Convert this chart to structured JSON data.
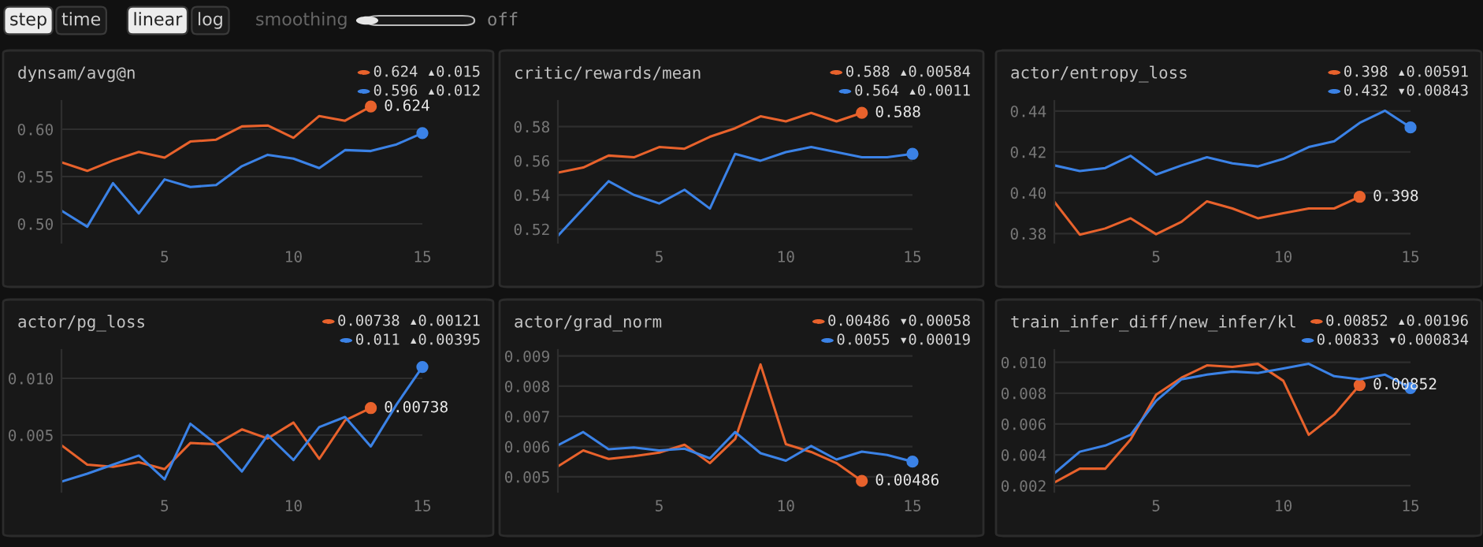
{
  "chart_data": [
    {
      "type": "other",
      "annotations": [
        "step",
        "time",
        "linear",
        "log",
        "smoothing",
        "off"
      ]
    },
    {
      "type": "line",
      "title": "dynsam/avg@n",
      "xlim": [
        1,
        15
      ],
      "xticks": [
        5,
        10,
        15
      ],
      "ylim": [
        0.48,
        0.63
      ],
      "yticks": [
        {
          "value": 0.5,
          "label": "0.50"
        },
        0.55,
        {
          "value": 0.6,
          "label": "0.60"
        }
      ],
      "grid": "y",
      "annotations": [
        "0.624 ▴0.015",
        "0.596 ▴0.012"
      ],
      "series": [
        {
          "color": "#e8622c",
          "x": [
            1,
            2,
            3,
            4,
            5,
            6,
            7,
            8,
            9,
            10,
            11,
            12,
            13
          ],
          "values": [
            0.565,
            0.556,
            0.567,
            0.576,
            0.57,
            0.587,
            0.589,
            0.603,
            0.604,
            0.591,
            0.614,
            0.609,
            0.624
          ],
          "value_labels": [
            null,
            null,
            null,
            null,
            null,
            null,
            null,
            null,
            null,
            null,
            null,
            null,
            "0.624"
          ]
        },
        {
          "color": "#3b82e6",
          "x": [
            1,
            2,
            3,
            4,
            5,
            6,
            7,
            8,
            9,
            10,
            11,
            12,
            13,
            14,
            15
          ],
          "values": [
            0.514,
            0.497,
            0.543,
            0.511,
            0.547,
            0.539,
            0.541,
            0.561,
            0.573,
            0.569,
            0.559,
            0.578,
            0.577,
            0.584,
            0.596
          ]
        }
      ]
    },
    {
      "type": "line",
      "title": "critic/rewards/mean",
      "xlim": [
        1,
        15
      ],
      "xticks": [
        5,
        10,
        15
      ],
      "ylim": [
        0.512,
        0.595
      ],
      "yticks": [
        0.52,
        0.54,
        0.56,
        0.58
      ],
      "grid": "y",
      "annotations": [
        "0.588 ▴0.00584",
        "0.564 ▴0.0011"
      ],
      "series": [
        {
          "color": "#e8622c",
          "x": [
            1,
            2,
            3,
            4,
            5,
            6,
            7,
            8,
            9,
            10,
            11,
            12,
            13
          ],
          "values": [
            0.553,
            0.556,
            0.563,
            0.562,
            0.568,
            0.567,
            0.574,
            0.579,
            0.586,
            0.583,
            0.588,
            0.583,
            0.588
          ],
          "value_labels": [
            null,
            null,
            null,
            null,
            null,
            null,
            null,
            null,
            null,
            null,
            null,
            null,
            "0.588"
          ]
        },
        {
          "color": "#3b82e6",
          "x": [
            1,
            2,
            3,
            4,
            5,
            6,
            7,
            8,
            9,
            10,
            11,
            12,
            13,
            14,
            15
          ],
          "values": [
            0.516,
            0.532,
            0.548,
            0.54,
            0.535,
            0.543,
            0.532,
            0.564,
            0.56,
            0.565,
            0.568,
            0.565,
            0.562,
            0.562,
            0.564
          ]
        }
      ]
    },
    {
      "type": "line",
      "title": "actor/entropy_loss",
      "xlim": [
        1,
        15
      ],
      "xticks": [
        5,
        10,
        15
      ],
      "ylim": [
        0.3755,
        0.445
      ],
      "yticks": [
        {
          "value": 0.38,
          "label": "0.38"
        },
        {
          "value": 0.4,
          "label": "0.40"
        },
        0.42,
        0.44
      ],
      "grid": "y",
      "annotations": [
        "0.398 ▴0.00591",
        "0.432 ▾0.00843"
      ],
      "series": [
        {
          "color": "#e8622c",
          "x": [
            1,
            2,
            3,
            4,
            5,
            6,
            7,
            8,
            9,
            10,
            11,
            12,
            13
          ],
          "values": [
            0.3956,
            0.3795,
            0.3825,
            0.3875,
            0.3797,
            0.3858,
            0.3958,
            0.3923,
            0.3875,
            0.39,
            0.3923,
            0.3923,
            0.398
          ],
          "value_labels": [
            null,
            null,
            null,
            null,
            null,
            null,
            null,
            null,
            null,
            null,
            null,
            null,
            "0.398"
          ]
        },
        {
          "color": "#3b82e6",
          "x": [
            1,
            2,
            3,
            4,
            5,
            6,
            7,
            8,
            9,
            10,
            11,
            12,
            13,
            14,
            15
          ],
          "values": [
            0.4134,
            0.4106,
            0.4121,
            0.4181,
            0.4089,
            0.4134,
            0.4174,
            0.4144,
            0.4129,
            0.4166,
            0.4224,
            0.4252,
            0.4342,
            0.4402,
            0.432
          ]
        }
      ]
    },
    {
      "type": "line",
      "title": "actor/pg_loss",
      "xlim": [
        1,
        15
      ],
      "xticks": [
        5,
        10,
        15
      ],
      "ylim": [
        0,
        0.0125
      ],
      "yticks": [
        0.005,
        {
          "value": 0.01,
          "label": "0.010"
        }
      ],
      "grid": "y",
      "annotations": [
        "0.00738 ▴0.00121",
        "0.011 ▴0.00395"
      ],
      "series": [
        {
          "color": "#e8622c",
          "x": [
            1,
            2,
            3,
            4,
            5,
            6,
            7,
            8,
            9,
            10,
            11,
            12,
            13
          ],
          "values": [
            0.0041,
            0.0024,
            0.0022,
            0.0026,
            0.002,
            0.0043,
            0.0042,
            0.0055,
            0.0047,
            0.0061,
            0.0029,
            0.0063,
            0.00738
          ],
          "value_labels": [
            null,
            null,
            null,
            null,
            null,
            null,
            null,
            null,
            null,
            null,
            null,
            null,
            "0.00738"
          ]
        },
        {
          "color": "#3b82e6",
          "x": [
            1,
            2,
            3,
            4,
            5,
            6,
            7,
            8,
            9,
            10,
            11,
            12,
            13,
            14,
            15
          ],
          "values": [
            0.0009,
            0.0016,
            0.0024,
            0.0032,
            0.0011,
            0.006,
            0.0042,
            0.0018,
            0.005,
            0.0028,
            0.0057,
            0.0066,
            0.004,
            0.0077,
            0.011
          ]
        }
      ]
    },
    {
      "type": "line",
      "title": "actor/grad_norm",
      "xlim": [
        1,
        15
      ],
      "xticks": [
        5,
        10,
        15
      ],
      "ylim": [
        0.0045,
        0.0092
      ],
      "yticks": [
        0.005,
        0.006,
        0.007,
        0.008,
        0.009
      ],
      "grid": "y",
      "annotations": [
        "0.00486 ▾0.00058",
        "0.0055 ▾0.00019"
      ],
      "series": [
        {
          "color": "#e8622c",
          "x": [
            1,
            2,
            3,
            4,
            5,
            6,
            7,
            8,
            9,
            10,
            11,
            12,
            13
          ],
          "values": [
            0.00534,
            0.00587,
            0.00559,
            0.00568,
            0.0058,
            0.00606,
            0.00545,
            0.00625,
            0.00872,
            0.00608,
            0.00582,
            0.00545,
            0.00486
          ],
          "value_labels": [
            null,
            null,
            null,
            null,
            null,
            null,
            null,
            null,
            null,
            null,
            null,
            null,
            "0.00486"
          ]
        },
        {
          "color": "#3b82e6",
          "x": [
            1,
            2,
            3,
            4,
            5,
            6,
            7,
            8,
            9,
            10,
            11,
            12,
            13,
            14,
            15
          ],
          "values": [
            0.00604,
            0.00648,
            0.00591,
            0.00597,
            0.00587,
            0.00593,
            0.00561,
            0.00648,
            0.00578,
            0.00553,
            0.00602,
            0.00557,
            0.00583,
            0.00572,
            0.0055
          ]
        }
      ]
    },
    {
      "type": "line",
      "title": "train_infer_diff/new_infer/kl",
      "xlim": [
        1,
        15
      ],
      "xticks": [
        5,
        10,
        15
      ],
      "ylim": [
        0.0016,
        0.0108
      ],
      "yticks": [
        0.002,
        0.004,
        0.006,
        0.008,
        {
          "value": 0.01,
          "label": "0.010"
        }
      ],
      "grid": "y",
      "annotations": [
        "0.00852 ▴0.00196",
        "0.00833 ▾0.000834"
      ],
      "series": [
        {
          "color": "#e8622c",
          "x": [
            1,
            2,
            3,
            4,
            5,
            6,
            7,
            8,
            9,
            10,
            11,
            12,
            13
          ],
          "values": [
            0.0022,
            0.0031,
            0.0031,
            0.005,
            0.0079,
            0.009,
            0.0098,
            0.0097,
            0.0099,
            0.0088,
            0.0053,
            0.0066,
            0.00852
          ],
          "value_labels": [
            null,
            null,
            null,
            null,
            null,
            null,
            null,
            null,
            null,
            null,
            null,
            null,
            "0.00852"
          ]
        },
        {
          "color": "#3b82e6",
          "x": [
            1,
            2,
            3,
            4,
            5,
            6,
            7,
            8,
            9,
            10,
            11,
            12,
            13,
            14,
            15
          ],
          "values": [
            0.0028,
            0.0042,
            0.0046,
            0.0053,
            0.0075,
            0.0089,
            0.0092,
            0.0094,
            0.0093,
            0.0096,
            0.0099,
            0.0091,
            0.0089,
            0.0092,
            0.00833
          ]
        }
      ]
    }
  ]
}
